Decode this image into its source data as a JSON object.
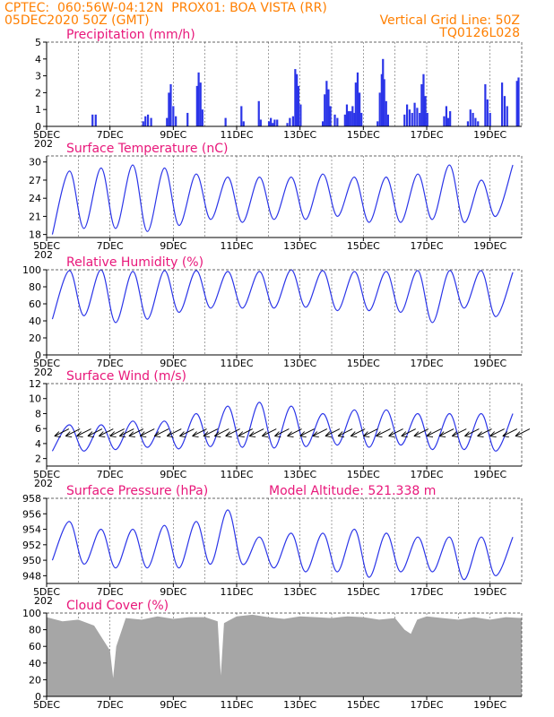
{
  "header": {
    "line1": "CPTEC:  060:56W-04:12N  PROX01: BOA VISTA (RR)",
    "line2": "05DEC2020 50Z (GMT)",
    "grid_note": "Vertical Grid Line: 50Z",
    "code": "TQ0126L028"
  },
  "colors": {
    "line": "#2b35e8",
    "title": "#e8177a",
    "header": "#ff7f00",
    "cloud": "#a6a6a6",
    "wind_arrow": "#000000"
  },
  "x_axis": {
    "labels": [
      "5DEC",
      "7DEC",
      "9DEC",
      "11DEC",
      "13DEC",
      "15DEC",
      "17DEC",
      "19DEC"
    ],
    "label_days": [
      0,
      2,
      4,
      6,
      8,
      10,
      12,
      14
    ],
    "start_day": 0,
    "end_day": 15,
    "grid_days": [
      1,
      2,
      3,
      4,
      5,
      6,
      7,
      8,
      9,
      10,
      11,
      12,
      13,
      14
    ],
    "truncated_year_label": "202"
  },
  "chart_data": [
    {
      "type": "bar",
      "title": "Precipitation (mm/h)",
      "ylim": [
        0,
        5
      ],
      "yticks": [
        "0",
        "1",
        "2",
        "3",
        "4",
        "5"
      ],
      "events": [
        {
          "day": 1.45,
          "v": 0.7
        },
        {
          "day": 1.55,
          "v": 0.7
        },
        {
          "day": 3.05,
          "v": 0.3
        },
        {
          "day": 3.12,
          "v": 0.6
        },
        {
          "day": 3.2,
          "v": 0.7
        },
        {
          "day": 3.3,
          "v": 0.5
        },
        {
          "day": 3.8,
          "v": 0.5
        },
        {
          "day": 3.86,
          "v": 2.0
        },
        {
          "day": 3.92,
          "v": 2.5
        },
        {
          "day": 4.0,
          "v": 1.2
        },
        {
          "day": 4.08,
          "v": 0.6
        },
        {
          "day": 4.45,
          "v": 0.8
        },
        {
          "day": 4.75,
          "v": 2.4
        },
        {
          "day": 4.8,
          "v": 3.2
        },
        {
          "day": 4.86,
          "v": 2.6
        },
        {
          "day": 4.92,
          "v": 1.0
        },
        {
          "day": 5.65,
          "v": 0.5
        },
        {
          "day": 6.15,
          "v": 1.2
        },
        {
          "day": 6.22,
          "v": 0.3
        },
        {
          "day": 6.7,
          "v": 1.5
        },
        {
          "day": 6.76,
          "v": 0.4
        },
        {
          "day": 7.02,
          "v": 0.3
        },
        {
          "day": 7.08,
          "v": 0.5
        },
        {
          "day": 7.14,
          "v": 0.2
        },
        {
          "day": 7.2,
          "v": 0.4
        },
        {
          "day": 7.28,
          "v": 0.4
        },
        {
          "day": 7.6,
          "v": 0.2
        },
        {
          "day": 7.68,
          "v": 0.5
        },
        {
          "day": 7.78,
          "v": 0.6
        },
        {
          "day": 7.85,
          "v": 3.4
        },
        {
          "day": 7.9,
          "v": 3.1
        },
        {
          "day": 7.95,
          "v": 2.4
        },
        {
          "day": 8.02,
          "v": 1.3
        },
        {
          "day": 8.72,
          "v": 0.3
        },
        {
          "day": 8.78,
          "v": 1.9
        },
        {
          "day": 8.84,
          "v": 2.7
        },
        {
          "day": 8.9,
          "v": 2.2
        },
        {
          "day": 8.96,
          "v": 1.2
        },
        {
          "day": 9.1,
          "v": 0.7
        },
        {
          "day": 9.18,
          "v": 0.5
        },
        {
          "day": 9.42,
          "v": 0.7
        },
        {
          "day": 9.48,
          "v": 1.3
        },
        {
          "day": 9.54,
          "v": 0.9
        },
        {
          "day": 9.6,
          "v": 0.9
        },
        {
          "day": 9.66,
          "v": 1.2
        },
        {
          "day": 9.72,
          "v": 0.8
        },
        {
          "day": 9.76,
          "v": 2.6
        },
        {
          "day": 9.82,
          "v": 3.2
        },
        {
          "day": 9.88,
          "v": 2.0
        },
        {
          "day": 9.94,
          "v": 0.8
        },
        {
          "day": 10.45,
          "v": 0.3
        },
        {
          "day": 10.52,
          "v": 2.0
        },
        {
          "day": 10.58,
          "v": 3.1
        },
        {
          "day": 10.62,
          "v": 4.0
        },
        {
          "day": 10.66,
          "v": 2.8
        },
        {
          "day": 10.72,
          "v": 1.5
        },
        {
          "day": 10.78,
          "v": 0.7
        },
        {
          "day": 11.3,
          "v": 0.7
        },
        {
          "day": 11.38,
          "v": 1.3
        },
        {
          "day": 11.46,
          "v": 1.0
        },
        {
          "day": 11.54,
          "v": 0.8
        },
        {
          "day": 11.62,
          "v": 1.4
        },
        {
          "day": 11.7,
          "v": 1.1
        },
        {
          "day": 11.78,
          "v": 0.8
        },
        {
          "day": 11.84,
          "v": 2.5
        },
        {
          "day": 11.9,
          "v": 3.1
        },
        {
          "day": 11.96,
          "v": 1.8
        },
        {
          "day": 12.02,
          "v": 0.8
        },
        {
          "day": 12.55,
          "v": 0.6
        },
        {
          "day": 12.62,
          "v": 1.2
        },
        {
          "day": 12.68,
          "v": 0.5
        },
        {
          "day": 12.74,
          "v": 0.9
        },
        {
          "day": 13.3,
          "v": 0.3
        },
        {
          "day": 13.38,
          "v": 1.0
        },
        {
          "day": 13.46,
          "v": 0.8
        },
        {
          "day": 13.54,
          "v": 0.5
        },
        {
          "day": 13.62,
          "v": 0.3
        },
        {
          "day": 13.85,
          "v": 2.5
        },
        {
          "day": 13.92,
          "v": 1.6
        },
        {
          "day": 14.0,
          "v": 0.8
        },
        {
          "day": 14.38,
          "v": 2.6
        },
        {
          "day": 14.46,
          "v": 1.8
        },
        {
          "day": 14.54,
          "v": 1.2
        },
        {
          "day": 14.85,
          "v": 2.7
        },
        {
          "day": 14.9,
          "v": 2.9
        }
      ]
    },
    {
      "type": "line",
      "title": "Surface Temperature (nC)",
      "ylim": [
        17.5,
        31
      ],
      "yticks": [
        "18",
        "21",
        "24",
        "27",
        "30"
      ],
      "day_min_max": [
        [
          1,
          18.0,
          28.5
        ],
        [
          2,
          19.0,
          29.0
        ],
        [
          3,
          19.0,
          29.5
        ],
        [
          4,
          18.5,
          29.0
        ],
        [
          5,
          19.5,
          28.0
        ],
        [
          6,
          20.5,
          27.5
        ],
        [
          7,
          20.0,
          27.5
        ],
        [
          8,
          20.5,
          27.5
        ],
        [
          9,
          20.5,
          28.0
        ],
        [
          10,
          21.0,
          27.5
        ],
        [
          11,
          20.0,
          27.5
        ],
        [
          12,
          20.0,
          28.0
        ],
        [
          13,
          20.5,
          29.5
        ],
        [
          14,
          20.0,
          27.0
        ],
        [
          15,
          21.0,
          29.5
        ]
      ]
    },
    {
      "type": "line",
      "title": "Relative Humidity (%)",
      "ylim": [
        0,
        100
      ],
      "yticks": [
        "0",
        "20",
        "40",
        "60",
        "80",
        "100"
      ],
      "day_min_max": [
        [
          1,
          42,
          99
        ],
        [
          2,
          46,
          100
        ],
        [
          3,
          38,
          98
        ],
        [
          4,
          42,
          99
        ],
        [
          5,
          50,
          99
        ],
        [
          6,
          55,
          98
        ],
        [
          7,
          55,
          98
        ],
        [
          8,
          55,
          100
        ],
        [
          9,
          56,
          99
        ],
        [
          10,
          52,
          98
        ],
        [
          11,
          52,
          98
        ],
        [
          12,
          50,
          99
        ],
        [
          13,
          38,
          99
        ],
        [
          14,
          55,
          99
        ],
        [
          15,
          45,
          97
        ]
      ]
    },
    {
      "type": "line",
      "title": "Surface Wind (m/s)",
      "ylim": [
        1,
        12
      ],
      "yticks": [
        "2",
        "4",
        "6",
        "8",
        "10",
        "12"
      ],
      "day_min_max": [
        [
          1,
          3.0,
          6.5
        ],
        [
          2,
          3.0,
          6.5
        ],
        [
          3,
          3.2,
          7.0
        ],
        [
          4,
          3.5,
          7.0
        ],
        [
          5,
          3.3,
          8.0
        ],
        [
          6,
          3.6,
          9.0
        ],
        [
          7,
          3.5,
          9.5
        ],
        [
          8,
          3.4,
          9.0
        ],
        [
          9,
          3.6,
          8.0
        ],
        [
          10,
          3.8,
          8.5
        ],
        [
          11,
          3.5,
          8.5
        ],
        [
          12,
          3.8,
          8.0
        ],
        [
          13,
          3.2,
          8.0
        ],
        [
          14,
          3.2,
          8.0
        ],
        [
          15,
          3.0,
          8.0
        ]
      ],
      "wind_arrow_days": [
        0.25,
        0.6,
        0.95,
        1.3,
        1.65,
        2.0,
        2.3,
        2.6,
        2.95,
        3.4,
        3.8,
        4.2,
        4.6,
        4.95,
        5.3,
        5.65,
        6.05,
        6.4,
        6.8,
        7.2,
        7.6,
        8.0,
        8.4,
        8.8,
        9.2,
        9.6,
        10.0,
        10.4,
        10.8,
        11.2,
        11.6,
        12.0,
        12.4,
        12.8,
        13.2,
        13.6,
        14.0,
        14.4,
        14.8
      ]
    },
    {
      "type": "line",
      "title": "Surface Pressure (hPa)",
      "ylim": [
        947,
        958
      ],
      "yticks": [
        "948",
        "950",
        "952",
        "954",
        "956",
        "958"
      ],
      "day_min_max": [
        [
          1,
          950.0,
          955.0
        ],
        [
          2,
          949.5,
          954.0
        ],
        [
          3,
          949.0,
          954.0
        ],
        [
          4,
          949.0,
          954.5
        ],
        [
          5,
          949.0,
          955.0
        ],
        [
          6,
          949.5,
          956.5
        ],
        [
          7,
          949.5,
          953.0
        ],
        [
          8,
          949.0,
          953.5
        ],
        [
          9,
          948.5,
          953.5
        ],
        [
          10,
          948.5,
          954.0
        ],
        [
          11,
          947.8,
          953.5
        ],
        [
          12,
          948.5,
          953.0
        ],
        [
          13,
          948.5,
          953.0
        ],
        [
          14,
          947.5,
          953.0
        ],
        [
          15,
          948.0,
          953.0
        ]
      ]
    },
    {
      "type": "area",
      "title": "Cloud Cover (%)",
      "ylim": [
        0,
        100
      ],
      "yticks": [
        "0",
        "20",
        "40",
        "60",
        "80",
        "100"
      ],
      "day_values": [
        [
          0.0,
          95
        ],
        [
          0.5,
          90
        ],
        [
          1.0,
          92
        ],
        [
          1.5,
          85
        ],
        [
          2.0,
          55
        ],
        [
          2.1,
          22
        ],
        [
          2.2,
          60
        ],
        [
          2.5,
          94
        ],
        [
          3.0,
          92
        ],
        [
          3.5,
          96
        ],
        [
          4.0,
          93
        ],
        [
          4.5,
          95
        ],
        [
          5.0,
          95
        ],
        [
          5.4,
          90
        ],
        [
          5.5,
          25
        ],
        [
          5.6,
          88
        ],
        [
          6.0,
          96
        ],
        [
          6.5,
          98
        ],
        [
          7.0,
          95
        ],
        [
          7.5,
          93
        ],
        [
          8.0,
          96
        ],
        [
          8.5,
          95
        ],
        [
          9.0,
          94
        ],
        [
          9.5,
          96
        ],
        [
          10.0,
          95
        ],
        [
          10.5,
          92
        ],
        [
          11.0,
          94
        ],
        [
          11.3,
          80
        ],
        [
          11.5,
          75
        ],
        [
          11.7,
          92
        ],
        [
          12.0,
          96
        ],
        [
          12.5,
          94
        ],
        [
          13.0,
          92
        ],
        [
          13.5,
          95
        ],
        [
          14.0,
          92
        ],
        [
          14.5,
          95
        ],
        [
          15.0,
          94
        ]
      ]
    }
  ],
  "annotations": {
    "model_altitude": "Model Altitude: 521.338 m"
  }
}
